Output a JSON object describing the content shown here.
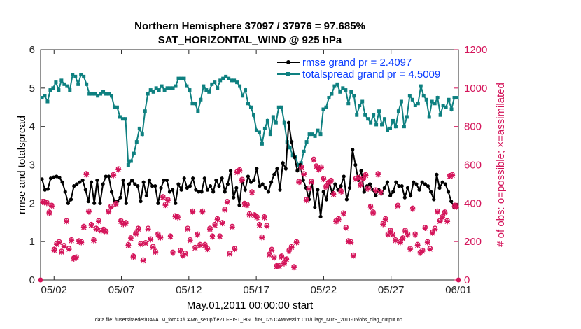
{
  "chart_data": {
    "type": "line",
    "title": "Northern Hemisphere 37097 / 37976 = 97.685%",
    "subtitle": "SAT_HORIZONTAL_WIND @ 925 hPa",
    "xlabel": "May.01,2011 00:00:00 start",
    "ylabel_left": "rmse and totalspread",
    "ylabel_right": "# of obs: o=possible; ×=assimilated",
    "xlim": [
      0,
      31
    ],
    "ylim_left": [
      0,
      6
    ],
    "ylim_right": [
      0,
      1200
    ],
    "x_ticks": [
      {
        "value": 1,
        "label": "05/02"
      },
      {
        "value": 6,
        "label": "05/07"
      },
      {
        "value": 11,
        "label": "05/12"
      },
      {
        "value": 16,
        "label": "05/17"
      },
      {
        "value": 21,
        "label": "05/22"
      },
      {
        "value": 26,
        "label": "05/27"
      },
      {
        "value": 31,
        "label": "06/01"
      }
    ],
    "y_ticks_left": [
      0,
      1,
      2,
      3,
      4,
      5,
      6
    ],
    "y_ticks_right": [
      0,
      200,
      400,
      600,
      800,
      1000,
      1200
    ],
    "legend_position": "top-right",
    "footer": "data file: /Users/raeder/DAI/ATM_forcXX/CAM6_setup/f.e21.FHIST_BGC.f09_025.CAM6assim.011/Diags_NTrS_2011-05/obs_diag_output.nc",
    "colors": {
      "rmse": "#000000",
      "spread": "#0e8080",
      "obs": "#d4145a"
    },
    "series": [
      {
        "name": "rmse grand pr = 2.4097",
        "axis": "left",
        "color": "#000000",
        "marker": "dot",
        "values": [
          2.63,
          2.35,
          2.37,
          2.65,
          2.68,
          2.7,
          2.67,
          2.55,
          2.3,
          2.0,
          2.1,
          2.45,
          2.5,
          2.55,
          2.6,
          2.35,
          2.05,
          2.55,
          2.0,
          2.6,
          2.0,
          2.5,
          2.7,
          2.7,
          2.3,
          2.05,
          2.05,
          2.15,
          2.6,
          2.0,
          2.5,
          2.6,
          2.5,
          2.45,
          2.05,
          2.55,
          2.2,
          2.6,
          2.45,
          2.45,
          2.0,
          2.4,
          2.6,
          2.6,
          2.3,
          2.35,
          2.0,
          2.5,
          2.35,
          2.65,
          2.4,
          2.45,
          2.65,
          2.35,
          2.3,
          2.3,
          2.65,
          2.35,
          2.45,
          2.3,
          2.6,
          2.45,
          2.65,
          2.3,
          2.5,
          2.85,
          2.15,
          2.4,
          1.95,
          2.6,
          2.35,
          2.7,
          2.55,
          2.6,
          2.9,
          2.45,
          2.5,
          2.4,
          2.3,
          2.55,
          2.75,
          2.9,
          2.35,
          3.05,
          2.9,
          4.1,
          3.6,
          3.2,
          2.85,
          3.0,
          2.6,
          2.4,
          2.1,
          2.55,
          1.9,
          2.35,
          1.65,
          2.3,
          2.1,
          2.55,
          2.25,
          2.5,
          2.35,
          2.45,
          2.7,
          2.1,
          2.4,
          3.4,
          3.0,
          2.6,
          2.85,
          2.3,
          2.45,
          2.5,
          2.35,
          2.2,
          2.35,
          2.25,
          2.4,
          2.55,
          2.2,
          2.3,
          2.55,
          2.45,
          2.45,
          2.15,
          2.4,
          2.2,
          2.55,
          2.5,
          2.35,
          2.55,
          2.5,
          2.45,
          2.3,
          2.1,
          2.75,
          2.4,
          2.55,
          2.5,
          2.3,
          2.05,
          1.9,
          1.95
        ]
      },
      {
        "name": "totalspread grand pr = 4.5009",
        "axis": "left",
        "color": "#0e8080",
        "marker": "square",
        "values": [
          4.75,
          4.8,
          4.65,
          4.95,
          5.0,
          5.15,
          4.95,
          5.2,
          5.1,
          5.05,
          4.95,
          5.35,
          5.3,
          5.1,
          5.35,
          5.3,
          5.1,
          4.85,
          4.85,
          4.85,
          4.8,
          4.85,
          4.9,
          4.85,
          4.85,
          4.8,
          4.5,
          4.5,
          4.25,
          4.2,
          4.2,
          3.0,
          3.1,
          3.3,
          3.6,
          3.95,
          3.8,
          4.4,
          4.85,
          4.95,
          4.9,
          5.0,
          4.95,
          5.05,
          4.95,
          5.0,
          5.0,
          5.0,
          5.05,
          5.25,
          5.25,
          5.25,
          5.05,
          4.95,
          4.6,
          4.6,
          4.4,
          4.7,
          5.05,
          4.95,
          4.9,
          5.1,
          5.15,
          5.0,
          5.2,
          5.25,
          5.3,
          5.25,
          5.2,
          5.2,
          5.15,
          5.05,
          4.8,
          4.95,
          4.6,
          4.5,
          4.3,
          3.9,
          3.85,
          3.55,
          3.95,
          4.15,
          3.8,
          4.25,
          4.1,
          4.5,
          4.5,
          4.1,
          3.6,
          3.45,
          3.25,
          3.2,
          3.0,
          3.05,
          3.35,
          3.6,
          3.8,
          3.8,
          3.75,
          3.9,
          3.8,
          4.45,
          4.5,
          4.75,
          4.85,
          5.05,
          5.1,
          4.9,
          5.0,
          4.95,
          4.6,
          4.9,
          4.8,
          4.3,
          4.55,
          4.65,
          4.3,
          4.2,
          4.1,
          4.3,
          4.05,
          4.4,
          4.05,
          4.2,
          3.9,
          3.95,
          4.15,
          4.0,
          4.4,
          4.65,
          4.0,
          4.25,
          4.8,
          4.7,
          4.55,
          4.6,
          5.05,
          4.8,
          4.7,
          4.25,
          4.65,
          4.6,
          4.75,
          4.3,
          4.55,
          4.5,
          4.7,
          4.45,
          4.75,
          4.75
        ]
      },
      {
        "name": "possible",
        "axis": "right",
        "color": "#d4145a",
        "marker": "circle",
        "values": [
          410,
          410,
          405,
          355,
          390,
          160,
          190,
          200,
          150,
          180,
          310,
          165,
          210,
          115,
          120,
          205,
          200,
          280,
          555,
          360,
          290,
          210,
          270,
          310,
          260,
          265,
          255,
          360,
          385,
          550,
          400,
          580,
          310,
          295,
          300,
          185,
          220,
          125,
          245,
          270,
          190,
          105,
          195,
          270,
          215,
          175,
          150,
          240,
          225,
          435,
          395,
          420,
          230,
          145,
          335,
          330,
          155,
          130,
          140,
          270,
          210,
          360,
          170,
          240,
          185,
          360,
          185,
          165,
          270,
          230,
          290,
          320,
          230,
          300,
          370,
          410,
          140,
          280,
          165,
          565,
          575,
          525,
          400,
          395,
          345,
          460,
          340,
          330,
          290,
          225,
          330,
          285,
          135,
          160,
          120,
          75,
          75,
          125,
          90,
          110,
          155,
          175,
          70,
          200,
          515,
          590,
          555,
          420,
          480,
          515,
          630,
          595,
          580,
          590,
          530,
          490,
          510,
          520,
          450,
          310,
          320,
          465,
          350,
          275,
          205,
          200,
          130,
          530,
          535,
          500,
          530,
          550,
          480,
          385,
          355,
          470,
          555,
          460,
          295,
          320,
          240,
          260,
          240,
          210,
          390,
          200,
          220,
          260,
          240,
          165,
          375,
          240,
          185,
          145,
          155,
          275,
          200,
          165,
          250,
          270,
          360,
          310,
          330,
          355,
          310,
          545,
          550,
          390,
          385
        ]
      },
      {
        "name": "assimilated",
        "axis": "right",
        "color": "#d4145a",
        "marker": "x",
        "values": [
          405,
          405,
          400,
          350,
          385,
          155,
          185,
          195,
          145,
          175,
          305,
          160,
          205,
          110,
          115,
          200,
          195,
          275,
          550,
          355,
          285,
          205,
          265,
          305,
          255,
          260,
          250,
          355,
          380,
          545,
          395,
          575,
          305,
          290,
          295,
          180,
          215,
          120,
          240,
          265,
          185,
          100,
          190,
          265,
          210,
          170,
          145,
          235,
          220,
          430,
          390,
          415,
          225,
          140,
          330,
          325,
          150,
          125,
          135,
          265,
          205,
          355,
          165,
          235,
          180,
          355,
          180,
          160,
          265,
          225,
          285,
          315,
          225,
          295,
          365,
          405,
          135,
          275,
          160,
          560,
          570,
          520,
          395,
          390,
          340,
          455,
          335,
          325,
          285,
          220,
          325,
          280,
          130,
          155,
          115,
          70,
          70,
          120,
          85,
          105,
          150,
          170,
          65,
          195,
          510,
          585,
          550,
          415,
          475,
          510,
          625,
          590,
          575,
          585,
          525,
          485,
          505,
          515,
          445,
          305,
          315,
          460,
          345,
          270,
          200,
          195,
          125,
          525,
          530,
          495,
          525,
          545,
          475,
          380,
          350,
          465,
          550,
          455,
          290,
          315,
          235,
          255,
          235,
          205,
          385,
          195,
          215,
          255,
          235,
          160,
          370,
          235,
          180,
          140,
          150,
          270,
          195,
          160,
          245,
          265,
          355,
          305,
          325,
          350,
          305,
          540,
          545,
          385,
          380
        ]
      }
    ]
  }
}
